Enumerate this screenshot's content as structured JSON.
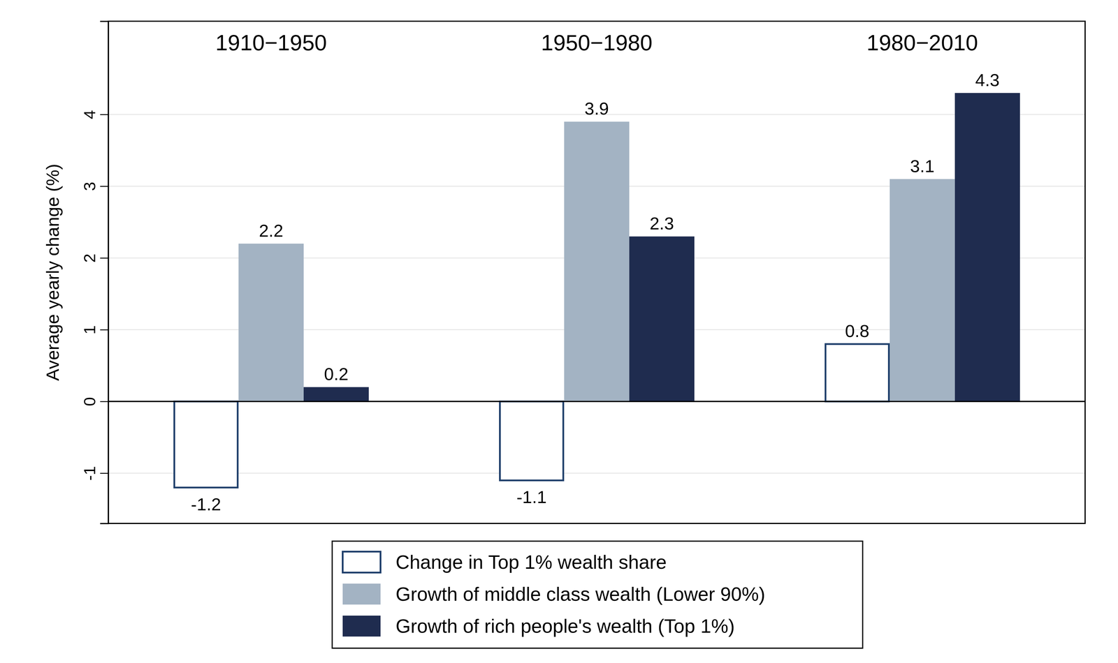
{
  "chart_data": {
    "type": "bar",
    "categories": [
      "1910−1950",
      "1950−1980",
      "1980−2010"
    ],
    "y_label": "Average yearly change (%)",
    "series": [
      {
        "name": "Change in Top 1% wealth share",
        "color": "#ffffff",
        "values": [
          -1.2,
          -1.1,
          0.8
        ]
      },
      {
        "name": "Growth of middle class wealth (Lower 90%)",
        "color": "#a3b3c3",
        "values": [
          2.2,
          3.9,
          3.1
        ]
      },
      {
        "name": "Growth of rich people's wealth (Top 1%)",
        "color": "#1f2c4f",
        "values": [
          0.2,
          2.3,
          4.3
        ]
      }
    ],
    "ylim": [
      -1.7,
      5.3
    ],
    "yticks": [
      -1,
      0,
      1,
      2,
      3,
      4
    ],
    "grid": true,
    "legend": "bottom",
    "data_labels": true
  }
}
